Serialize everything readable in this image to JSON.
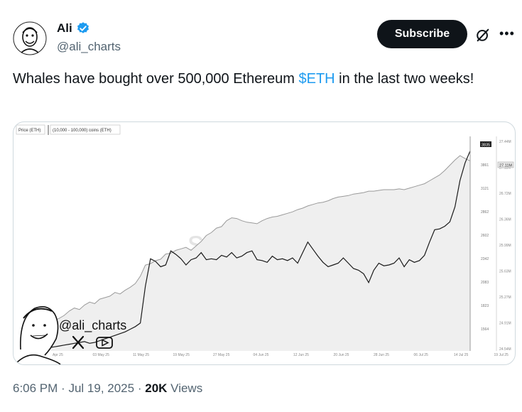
{
  "author": {
    "name": "Ali",
    "handle": "@ali_charts",
    "verified": true,
    "verified_color": "#1d9bf0"
  },
  "actions": {
    "subscribe_label": "Subscribe",
    "grok_icon": "grok-icon",
    "more_icon": "more-icon"
  },
  "tweet": {
    "text_before": "Whales have bought over 500,000 Ethereum ",
    "cashtag": "$ETH",
    "text_after": " in the last two weeks!",
    "cashtag_color": "#1d9bf0"
  },
  "chart_data": {
    "type": "line",
    "legend": [
      "Price (ETH)",
      "(10,000 - 100,000) coins (ETH)"
    ],
    "watermark": "santiment",
    "x_ticks": [
      "Apr 25",
      "03 May 25",
      "11 May 25",
      "19 May 25",
      "27 May 25",
      "04 Jun 25",
      "12 Jun 25",
      "20 Jun 25",
      "28 Jun 25",
      "06 Jul 25",
      "14 Jul 25",
      "19 Jul 25"
    ],
    "y_left_ticks": [
      "3861",
      "3121",
      "2862",
      "2602",
      "2342",
      "2083",
      "1823",
      "1564"
    ],
    "y_right_ticks": [
      "27.44M",
      "27.11M",
      "26.72M",
      "26.36M",
      "25.99M",
      "25.63M",
      "25.27M",
      "24.91M",
      "24.54M"
    ],
    "price_badge": "3835",
    "holdings_badge": "27.11M",
    "series": [
      {
        "name": "Price (ETH)",
        "values": [
          1600,
          1610,
          1620,
          1630,
          1640,
          1650,
          1660,
          1670,
          1650,
          1660,
          1680,
          1700,
          1720,
          1740,
          1760,
          1780,
          1810,
          1840,
          1880,
          2300,
          2610,
          2580,
          2520,
          2540,
          2700,
          2660,
          2610,
          2540,
          2600,
          2620,
          2680,
          2600,
          2610,
          2600,
          2650,
          2630,
          2680,
          2620,
          2640,
          2680,
          2700,
          2600,
          2590,
          2570,
          2640,
          2600,
          2610,
          2590,
          2620,
          2560,
          2680,
          2800,
          2720,
          2640,
          2570,
          2520,
          2540,
          2560,
          2620,
          2560,
          2500,
          2480,
          2440,
          2340,
          2480,
          2560,
          2530,
          2540,
          2560,
          2620,
          2520,
          2600,
          2570,
          2590,
          2650,
          2800,
          2940,
          2950,
          2980,
          3030,
          3200,
          3500,
          3700,
          3835
        ]
      },
      {
        "name": "(10,000 - 100,000) coins (ETH)",
        "values": [
          24.92,
          24.95,
          24.98,
          25.02,
          25.08,
          25.12,
          25.1,
          25.16,
          25.2,
          25.18,
          25.24,
          25.26,
          25.28,
          25.33,
          25.31,
          25.36,
          25.4,
          25.45,
          25.55,
          25.7,
          25.72,
          25.76,
          25.78,
          25.85,
          25.86,
          25.9,
          25.92,
          25.94,
          25.9,
          25.96,
          26.02,
          26.1,
          26.14,
          26.2,
          26.22,
          26.3,
          26.34,
          26.33,
          26.3,
          26.28,
          26.27,
          26.26,
          26.3,
          26.33,
          26.35,
          26.36,
          26.38,
          26.4,
          26.42,
          26.45,
          26.47,
          26.5,
          26.52,
          26.54,
          26.55,
          26.57,
          26.6,
          26.62,
          26.63,
          26.64,
          26.66,
          26.67,
          26.68,
          26.7,
          26.7,
          26.71,
          26.72,
          26.72,
          26.72,
          26.73,
          26.72,
          26.74,
          26.76,
          26.78,
          26.8,
          26.84,
          26.88,
          26.92,
          26.98,
          27.05,
          27.12,
          27.18,
          27.14,
          27.11
        ]
      }
    ]
  },
  "overlay": {
    "handle": "@ali_charts",
    "x_icon": "x-logo-icon",
    "youtube_icon": "youtube-icon"
  },
  "meta": {
    "time": "6:06 PM",
    "date": "Jul 19, 2025",
    "views_count": "20K",
    "views_label": "Views",
    "separator": "·"
  }
}
